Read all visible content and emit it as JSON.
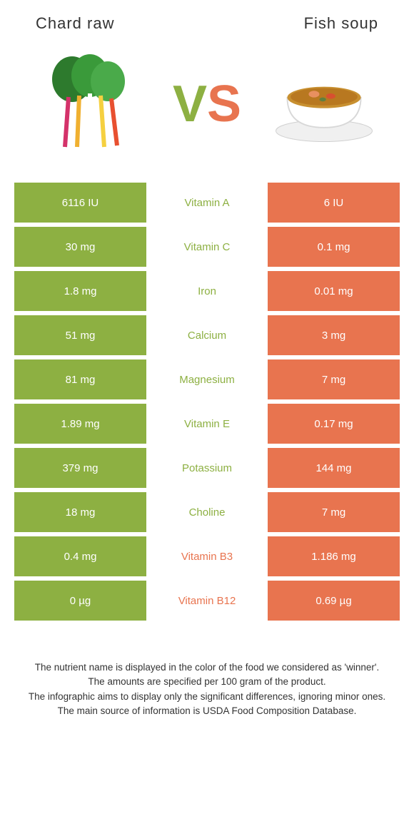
{
  "colors": {
    "green": "#8db042",
    "orange": "#e8744f",
    "text": "#333333",
    "white": "#ffffff"
  },
  "left_food": {
    "title": "Chard raw"
  },
  "right_food": {
    "title": "Fish soup"
  },
  "vs": {
    "v": "V",
    "s": "S"
  },
  "rows": [
    {
      "left": "6116 IU",
      "name": "Vitamin A",
      "winner": "left",
      "right": "6 IU"
    },
    {
      "left": "30 mg",
      "name": "Vitamin C",
      "winner": "left",
      "right": "0.1 mg"
    },
    {
      "left": "1.8 mg",
      "name": "Iron",
      "winner": "left",
      "right": "0.01 mg"
    },
    {
      "left": "51 mg",
      "name": "Calcium",
      "winner": "left",
      "right": "3 mg"
    },
    {
      "left": "81 mg",
      "name": "Magnesium",
      "winner": "left",
      "right": "7 mg"
    },
    {
      "left": "1.89 mg",
      "name": "Vitamin E",
      "winner": "left",
      "right": "0.17 mg"
    },
    {
      "left": "379 mg",
      "name": "Potassium",
      "winner": "left",
      "right": "144 mg"
    },
    {
      "left": "18 mg",
      "name": "Choline",
      "winner": "left",
      "right": "7 mg"
    },
    {
      "left": "0.4 mg",
      "name": "Vitamin B3",
      "winner": "right",
      "right": "1.186 mg"
    },
    {
      "left": "0 µg",
      "name": "Vitamin B12",
      "winner": "right",
      "right": "0.69 µg"
    }
  ],
  "footer": {
    "l1": "The nutrient name is displayed in the color of the food we considered as 'winner'.",
    "l2": "The amounts are specified per 100 gram of the product.",
    "l3": "The infographic aims to display only the significant differences, ignoring minor ones.",
    "l4": "The main source of information is USDA Food Composition Database."
  }
}
